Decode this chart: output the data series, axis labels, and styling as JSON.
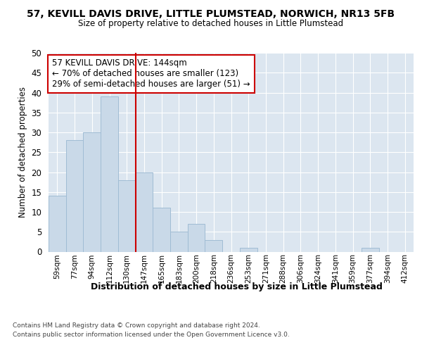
{
  "title": "57, KEVILL DAVIS DRIVE, LITTLE PLUMSTEAD, NORWICH, NR13 5FB",
  "subtitle": "Size of property relative to detached houses in Little Plumstead",
  "xlabel": "Distribution of detached houses by size in Little Plumstead",
  "ylabel": "Number of detached properties",
  "bin_labels": [
    "59sqm",
    "77sqm",
    "94sqm",
    "112sqm",
    "130sqm",
    "147sqm",
    "165sqm",
    "183sqm",
    "200sqm",
    "218sqm",
    "236sqm",
    "253sqm",
    "271sqm",
    "288sqm",
    "306sqm",
    "324sqm",
    "341sqm",
    "359sqm",
    "377sqm",
    "394sqm",
    "412sqm"
  ],
  "bar_heights": [
    14,
    28,
    30,
    39,
    18,
    20,
    11,
    5,
    7,
    3,
    0,
    1,
    0,
    0,
    0,
    0,
    0,
    0,
    1,
    0,
    0
  ],
  "bar_color": "#c9d9e8",
  "bar_edgecolor": "#a0bcd4",
  "vline_x": 4.5,
  "vline_color": "#cc0000",
  "annotation_text": "57 KEVILL DAVIS DRIVE: 144sqm\n← 70% of detached houses are smaller (123)\n29% of semi-detached houses are larger (51) →",
  "annotation_box_edgecolor": "#cc0000",
  "annotation_box_facecolor": "#ffffff",
  "ylim": [
    0,
    50
  ],
  "yticks": [
    0,
    5,
    10,
    15,
    20,
    25,
    30,
    35,
    40,
    45,
    50
  ],
  "background_color": "#dce6f0",
  "footer_line1": "Contains HM Land Registry data © Crown copyright and database right 2024.",
  "footer_line2": "Contains public sector information licensed under the Open Government Licence v3.0."
}
